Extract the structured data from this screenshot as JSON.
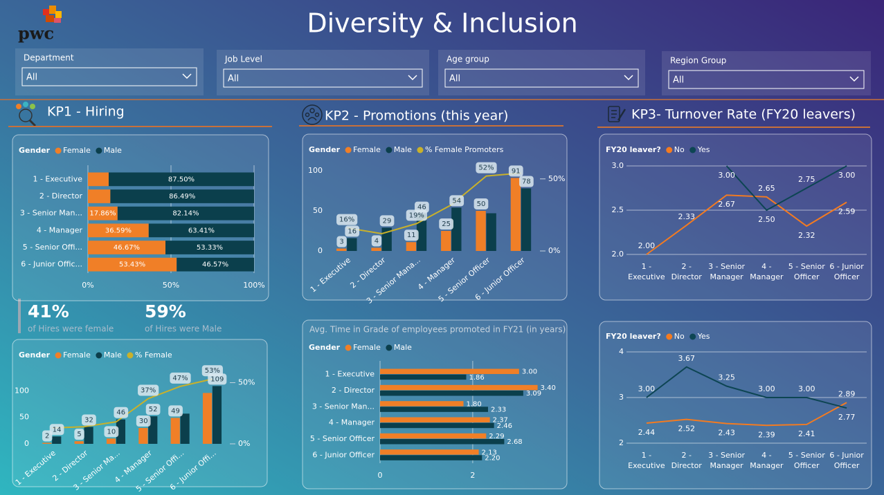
{
  "header": {
    "logo": "pwc",
    "title": "Diversity & Inclusion"
  },
  "filters": [
    {
      "label": "Department",
      "value": "All"
    },
    {
      "label": "Job Level",
      "value": "All"
    },
    {
      "label": "Age group",
      "value": "All"
    },
    {
      "label": "Region Group",
      "value": "All"
    }
  ],
  "sections": [
    "KP1 - Hiring",
    "KP2 - Promotions (this year)",
    "KP3- Turnover Rate (FY20 leavers)"
  ],
  "kpis": [
    {
      "value": "41%",
      "text": "of Hires were female"
    },
    {
      "value": "59%",
      "text": "of Hires were Male"
    }
  ],
  "chart_data": [
    {
      "type": "hbar",
      "stacked": true,
      "legend_title": "Gender",
      "categories": [
        "1 - Executive",
        "2 - Director",
        "3 - Senior Man...",
        "4 - Manager",
        "5 - Senior Offi...",
        "6 - Junior Offic..."
      ],
      "series": [
        {
          "name": "Female",
          "color": "#f07f27",
          "values": [
            12.5,
            13.51,
            17.86,
            36.59,
            46.67,
            53.43
          ],
          "value_labels": [
            null,
            null,
            "17.86%",
            "36.59%",
            "46.67%",
            "53.43%"
          ]
        },
        {
          "name": "Male",
          "color": "#0b3f4c",
          "values": [
            87.5,
            86.49,
            82.14,
            63.41,
            53.33,
            46.57
          ],
          "value_labels": [
            "87.50%",
            "86.49%",
            "82.14%",
            "63.41%",
            "53.33%",
            "46.57%"
          ]
        }
      ],
      "xlim": [
        0,
        100
      ],
      "xticks": [
        {
          "value": 0,
          "label": "0%"
        },
        {
          "value": 50,
          "label": "50%"
        },
        {
          "value": 100,
          "label": "100%"
        }
      ],
      "grid": true
    },
    {
      "type": "combo",
      "legend_title": "Gender",
      "categories": [
        "1 - Executive",
        "2 - Director",
        "3 - Senior Mana...",
        "4 - Manager",
        "5 - Senior Officer",
        "6 - Junior Officer"
      ],
      "series": [
        {
          "name": "Female",
          "color": "#f07f27",
          "values": [
            3,
            4,
            11,
            25,
            50,
            91
          ]
        },
        {
          "name": "Male",
          "color": "#0b3f4c",
          "values": [
            16,
            29,
            46,
            54,
            47,
            78
          ],
          "value_labels": [
            "16",
            "29",
            "46",
            "54",
            null,
            "78"
          ]
        },
        {
          "name": "% Female Promoters",
          "color": "#c9b12b",
          "type": "line",
          "axis": "y2",
          "values": [
            16,
            12,
            19,
            32,
            52,
            54
          ],
          "value_labels": [
            "16%",
            null,
            "19%",
            null,
            "52%",
            null
          ]
        }
      ],
      "ylim": [
        0,
        106
      ],
      "yticks": [
        0,
        50,
        100
      ],
      "y2lim": [
        0,
        59
      ],
      "y2ticks": [
        {
          "value": 0,
          "label": "0%"
        },
        {
          "value": 50,
          "label": "50%"
        }
      ]
    },
    {
      "type": "combo",
      "legend_title": "Gender",
      "categories": [
        "1 - Executive",
        "2 - Director",
        "3 - Senior Ma...",
        "4 - Manager",
        "5 - Senior Offi...",
        "6 - Junior Offi..."
      ],
      "series": [
        {
          "name": "Female",
          "color": "#f07f27",
          "values": [
            2,
            5,
            10,
            30,
            49,
            96
          ],
          "value_labels": [
            "2",
            "5",
            "10",
            "30",
            "49",
            null
          ]
        },
        {
          "name": "Male",
          "color": "#0b3f4c",
          "values": [
            14,
            32,
            46,
            52,
            57,
            109
          ],
          "value_labels": [
            "14",
            "32",
            "46",
            "52",
            null,
            "109"
          ]
        },
        {
          "name": "% Female",
          "color": "#c9b12b",
          "type": "line",
          "axis": "y2",
          "values": [
            13,
            14,
            18,
            37,
            47,
            53
          ],
          "value_labels": [
            null,
            null,
            null,
            "37%",
            "47%",
            "53%"
          ]
        }
      ],
      "ylim": [
        0,
        120
      ],
      "yticks": [
        0,
        50,
        100
      ],
      "y2lim": [
        0,
        52
      ],
      "y2ticks": [
        {
          "value": 0,
          "label": "0%"
        },
        {
          "value": 50,
          "label": "50%"
        }
      ]
    },
    {
      "type": "hbar",
      "stacked": false,
      "title": "Avg. Time in Grade of employees promoted in FY21 (in years)",
      "legend_title": "Gender",
      "categories": [
        "1 - Executive",
        "2 - Director",
        "3 - Senior Man...",
        "4 - Manager",
        "5 - Senior Officer",
        "6 - Junior Officer"
      ],
      "series": [
        {
          "name": "Female",
          "color": "#f07f27",
          "values": [
            3.0,
            3.4,
            1.8,
            2.37,
            2.29,
            2.13
          ],
          "value_labels": [
            "3.00",
            "3.40",
            "1.80",
            "2.37",
            "2.29",
            "2.13"
          ]
        },
        {
          "name": "Male",
          "color": "#0b3f4c",
          "values": [
            1.86,
            3.09,
            2.33,
            2.46,
            2.68,
            2.2
          ],
          "value_labels": [
            "1.86",
            "3.09",
            "2.33",
            "2.46",
            "2.68",
            "2.20"
          ]
        }
      ],
      "xlim": [
        0,
        3.6
      ],
      "xticks": [
        0,
        2
      ],
      "grid": true
    },
    {
      "type": "line",
      "legend_title": "FY20 leaver?",
      "categories": [
        "1 - Executive",
        "2 - Director",
        "3 - Senior Manager",
        "4 - Manager",
        "5 - Senior Officer",
        "6 - Junior Officer"
      ],
      "series": [
        {
          "name": "No",
          "color": "#f47b20",
          "values": [
            2.0,
            2.33,
            2.67,
            2.65,
            2.32,
            2.59
          ],
          "value_labels": [
            "2.00",
            "2.33",
            "2.67",
            "2.65",
            "2.32",
            "2.59"
          ]
        },
        {
          "name": "Yes",
          "color": "#0d4553",
          "values": [
            null,
            null,
            3.0,
            2.5,
            2.75,
            3.0
          ],
          "value_labels": [
            null,
            null,
            "3.00",
            "2.50",
            "2.75",
            "3.00"
          ]
        }
      ],
      "ylim": [
        2,
        3
      ],
      "yticks": [
        {
          "value": 2,
          "label": "2.0"
        },
        2.5,
        {
          "value": 3,
          "label": "3.0"
        }
      ],
      "grid": true
    },
    {
      "type": "line",
      "legend_title": "FY20 leaver?",
      "categories": [
        "1 - Executive",
        "2 - Director",
        "3 - Senior Manager",
        "4 - Manager",
        "5 - Senior Officer",
        "6 - Junior Officer"
      ],
      "series": [
        {
          "name": "No",
          "color": "#f47b20",
          "values": [
            2.44,
            2.52,
            2.43,
            2.39,
            2.41,
            2.89
          ],
          "value_labels": [
            "2.44",
            "2.52",
            "2.43",
            "2.39",
            "2.41",
            "2.89"
          ]
        },
        {
          "name": "Yes",
          "color": "#0d4553",
          "values": [
            3.0,
            3.67,
            3.25,
            3.0,
            3.0,
            2.77
          ],
          "value_labels": [
            "3.00",
            "3.67",
            "3.25",
            "3.00",
            "3.00",
            "2.77"
          ]
        }
      ],
      "ylim": [
        2,
        4
      ],
      "yticks": [
        2,
        3,
        4
      ],
      "grid": true
    }
  ]
}
